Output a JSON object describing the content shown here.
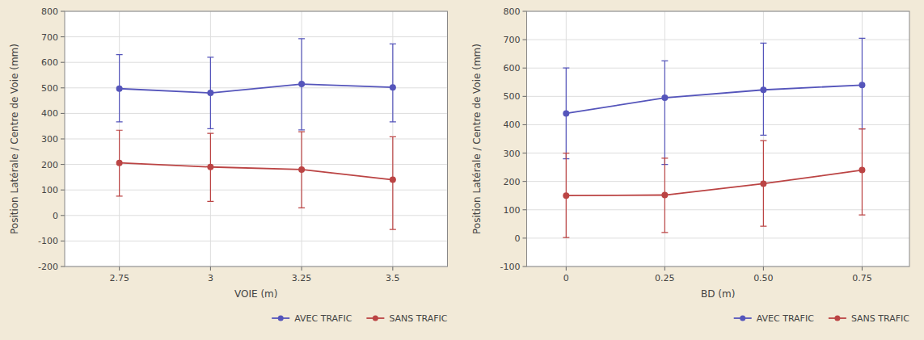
{
  "chart_data": [
    {
      "type": "line",
      "x": [
        2.75,
        3,
        3.25,
        3.5
      ],
      "xlim": [
        2.6,
        3.65
      ],
      "xticks": [
        2.75,
        3,
        3.25,
        3.5
      ],
      "xlabel": "VOIE (m)",
      "ylabel": "Position Latérale / Centre de Voie (mm)",
      "ylim": [
        -200,
        800
      ],
      "yticks": [
        -200,
        -100,
        0,
        100,
        200,
        300,
        400,
        500,
        600,
        700,
        800
      ],
      "grid": true,
      "legend": "lower right",
      "series": [
        {
          "name": "AVEC TRAFIC",
          "color": "#5555bb",
          "marker": "circle",
          "values": [
            497,
            480,
            515,
            502
          ],
          "yerr_minus": [
            130,
            140,
            180,
            135
          ],
          "yerr_plus": [
            133,
            140,
            178,
            170
          ]
        },
        {
          "name": "SANS TRAFIC",
          "color": "#bb4444",
          "marker": "circle",
          "values": [
            206,
            190,
            180,
            140
          ],
          "yerr_minus": [
            130,
            135,
            150,
            195
          ],
          "yerr_plus": [
            128,
            132,
            148,
            168
          ]
        }
      ]
    },
    {
      "type": "line",
      "x": [
        0,
        0.25,
        0.5,
        0.75
      ],
      "xlim": [
        -0.1,
        0.87
      ],
      "xticks": [
        0,
        0.25,
        {
          "value": 0.5,
          "label": "0.50"
        },
        0.75
      ],
      "xlabel": "BD (m)",
      "ylabel": "Position Latérale / Centre de Voie (mm)",
      "ylim": [
        -100,
        800
      ],
      "yticks": [
        -100,
        0,
        100,
        200,
        300,
        400,
        500,
        600,
        700,
        800
      ],
      "grid": true,
      "legend": "lower right",
      "series": [
        {
          "name": "AVEC TRAFIC",
          "color": "#5555bb",
          "marker": "circle",
          "values": [
            440,
            495,
            523,
            540
          ],
          "yerr_minus": [
            160,
            235,
            160,
            155
          ],
          "yerr_plus": [
            160,
            130,
            165,
            165
          ]
        },
        {
          "name": "SANS TRAFIC",
          "color": "#bb4444",
          "marker": "circle",
          "values": [
            150,
            152,
            192,
            240
          ],
          "yerr_minus": [
            148,
            132,
            150,
            158
          ],
          "yerr_plus": [
            150,
            130,
            152,
            145
          ]
        }
      ]
    }
  ]
}
